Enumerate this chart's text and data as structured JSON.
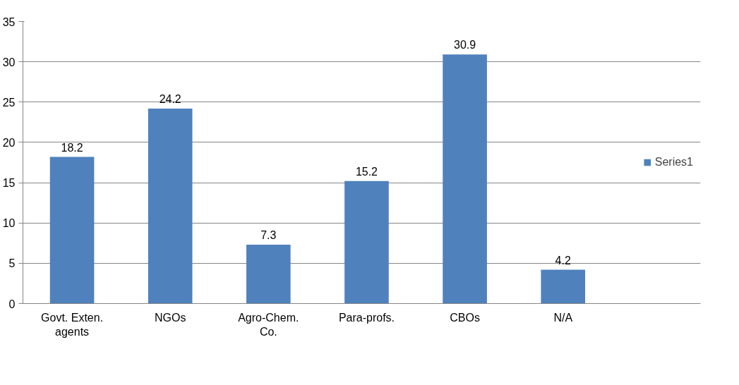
{
  "chart_data": {
    "type": "bar",
    "categories": [
      "Govt. Exten. agents",
      "NGOs",
      "Agro-Chem. Co.",
      "Para-profs.",
      "CBOs",
      "N/A"
    ],
    "series": [
      {
        "name": "Series1",
        "color": "#4f81bd",
        "values": [
          18.2,
          24.2,
          7.3,
          15.2,
          30.9,
          4.2
        ]
      }
    ],
    "ylim": [
      0,
      35
    ],
    "yticks": [
      0,
      5,
      10,
      15,
      20,
      25,
      30,
      35
    ],
    "grid": "y",
    "legend": "right",
    "data_labels": true
  }
}
